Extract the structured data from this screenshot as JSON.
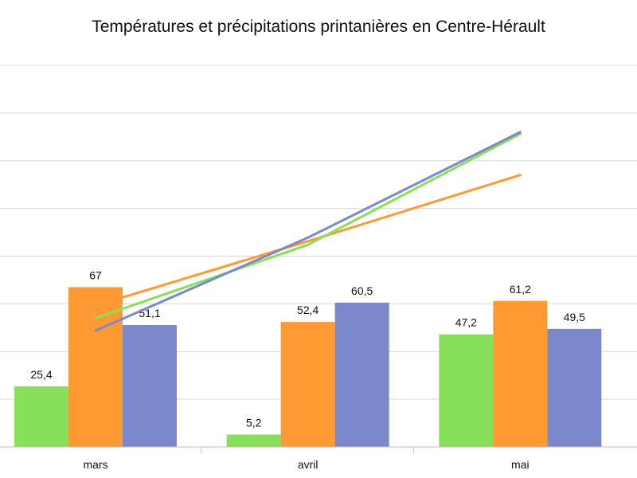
{
  "chart_data": {
    "type": "bar",
    "title": "Températures et précipitations printanières en Centre-Hérault",
    "categories": [
      "mars",
      "avril",
      "mai"
    ],
    "series": [
      {
        "values": [
          25.4,
          5.2,
          47.2
        ],
        "labels": [
          "25,4",
          "5,2",
          "47,2"
        ],
        "color": "#88e05a"
      },
      {
        "values": [
          67,
          52.4,
          61.2
        ],
        "labels": [
          "67",
          "52,4",
          "61,2"
        ],
        "color": "#ff9a33"
      },
      {
        "values": [
          51.1,
          60.5,
          49.5
        ],
        "labels": [
          "51,1",
          "60,5",
          "49,5"
        ],
        "color": "#7b88cc"
      }
    ],
    "lines": [
      {
        "color": "#ff9a33",
        "values": [
          7.9,
          11.5,
          15.2
        ]
      },
      {
        "color": "#88e05a",
        "values": [
          7.2,
          11.3,
          17.5
        ]
      },
      {
        "color": "#7b88cc",
        "values": [
          6.5,
          11.7,
          17.6
        ]
      }
    ],
    "ylim": [
      0,
      160
    ],
    "grid": true,
    "legend": "none"
  }
}
